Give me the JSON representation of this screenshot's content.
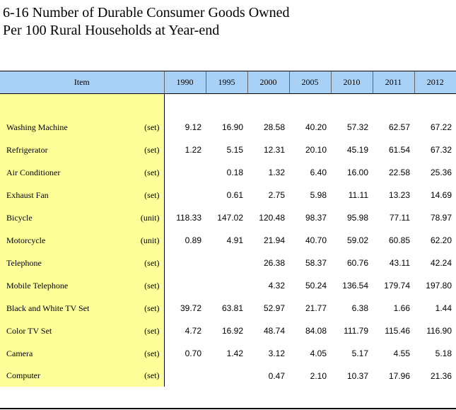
{
  "title": {
    "line1": "6-16  Number of Durable Consumer Goods Owned",
    "line2": "Per 100 Rural Households at Year-end"
  },
  "table": {
    "item_header": "Item",
    "years": [
      "1990",
      "1995",
      "2000",
      "2005",
      "2010",
      "2011",
      "2012"
    ],
    "rows": [
      {
        "item": "Washing Machine",
        "unit": "(set)",
        "values": [
          "9.12",
          "16.90",
          "28.58",
          "40.20",
          "57.32",
          "62.57",
          "67.22"
        ]
      },
      {
        "item": "Refrigerator",
        "unit": "(set)",
        "values": [
          "1.22",
          "5.15",
          "12.31",
          "20.10",
          "45.19",
          "61.54",
          "67.32"
        ]
      },
      {
        "item": "Air Conditioner",
        "unit": "(set)",
        "values": [
          "",
          "0.18",
          "1.32",
          "6.40",
          "16.00",
          "22.58",
          "25.36"
        ]
      },
      {
        "item": "Exhaust Fan",
        "unit": "(set)",
        "values": [
          "",
          "0.61",
          "2.75",
          "5.98",
          "11.11",
          "13.23",
          "14.69"
        ]
      },
      {
        "item": "Bicycle",
        "unit": "(unit)",
        "values": [
          "118.33",
          "147.02",
          "120.48",
          "98.37",
          "95.98",
          "77.11",
          "78.97"
        ]
      },
      {
        "item": "Motorcycle",
        "unit": "(unit)",
        "values": [
          "0.89",
          "4.91",
          "21.94",
          "40.70",
          "59.02",
          "60.85",
          "62.20"
        ]
      },
      {
        "item": "Telephone",
        "unit": "(set)",
        "values": [
          "",
          "",
          "26.38",
          "58.37",
          "60.76",
          "43.11",
          "42.24"
        ]
      },
      {
        "item": "Mobile Telephone",
        "unit": "(set)",
        "values": [
          "",
          "",
          "4.32",
          "50.24",
          "136.54",
          "179.74",
          "197.80"
        ]
      },
      {
        "item": "Black and White TV Set",
        "unit": "(set)",
        "values": [
          "39.72",
          "63.81",
          "52.97",
          "21.77",
          "6.38",
          "1.66",
          "1.44"
        ]
      },
      {
        "item": "Color TV Set",
        "unit": "(set)",
        "values": [
          "4.72",
          "16.92",
          "48.74",
          "84.08",
          "111.79",
          "115.46",
          "116.90"
        ]
      },
      {
        "item": "Camera",
        "unit": "(set)",
        "values": [
          "0.70",
          "1.42",
          "3.12",
          "4.05",
          "5.17",
          "4.55",
          "5.18"
        ]
      },
      {
        "item": "Computer",
        "unit": "(set)",
        "values": [
          "",
          "",
          "0.47",
          "2.10",
          "10.37",
          "17.96",
          "21.36"
        ]
      }
    ]
  }
}
